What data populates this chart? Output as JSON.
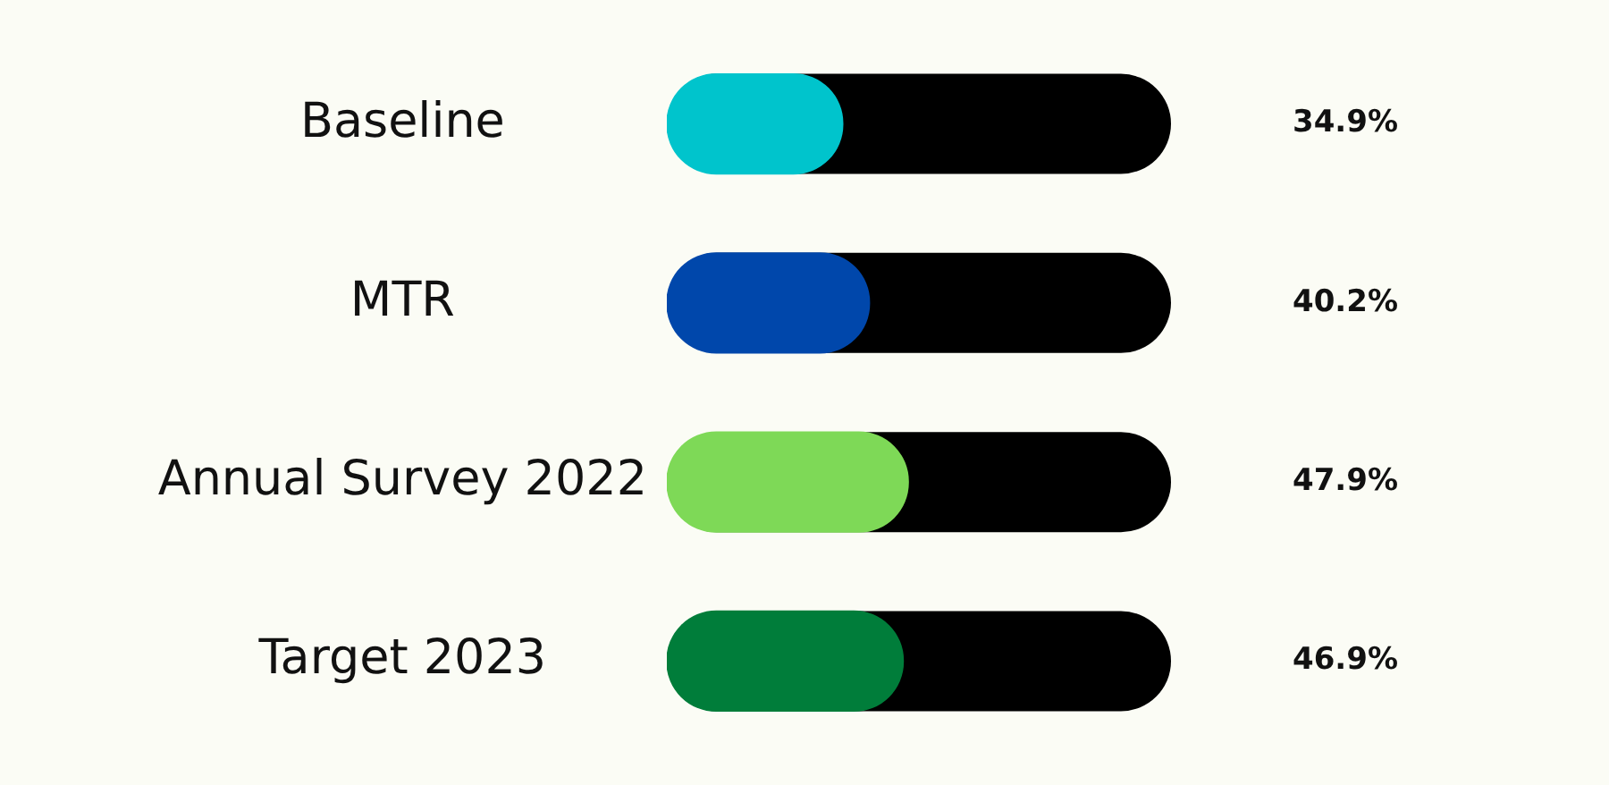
{
  "chart_data": {
    "type": "bar",
    "orientation": "horizontal",
    "categories": [
      "Baseline",
      "MTR",
      "Annual Survey 2022",
      "Target 2023"
    ],
    "values": [
      34.9,
      40.2,
      47.9,
      46.9
    ],
    "colors": [
      "#00c4cc",
      "#0047ab",
      "#7ed957",
      "#007d3a"
    ],
    "xlim": [
      0,
      100
    ],
    "tick_labels": "y",
    "legend": false,
    "value_labels": [
      "34.9%",
      "40.2%",
      "47.9%",
      "46.9%"
    ]
  }
}
